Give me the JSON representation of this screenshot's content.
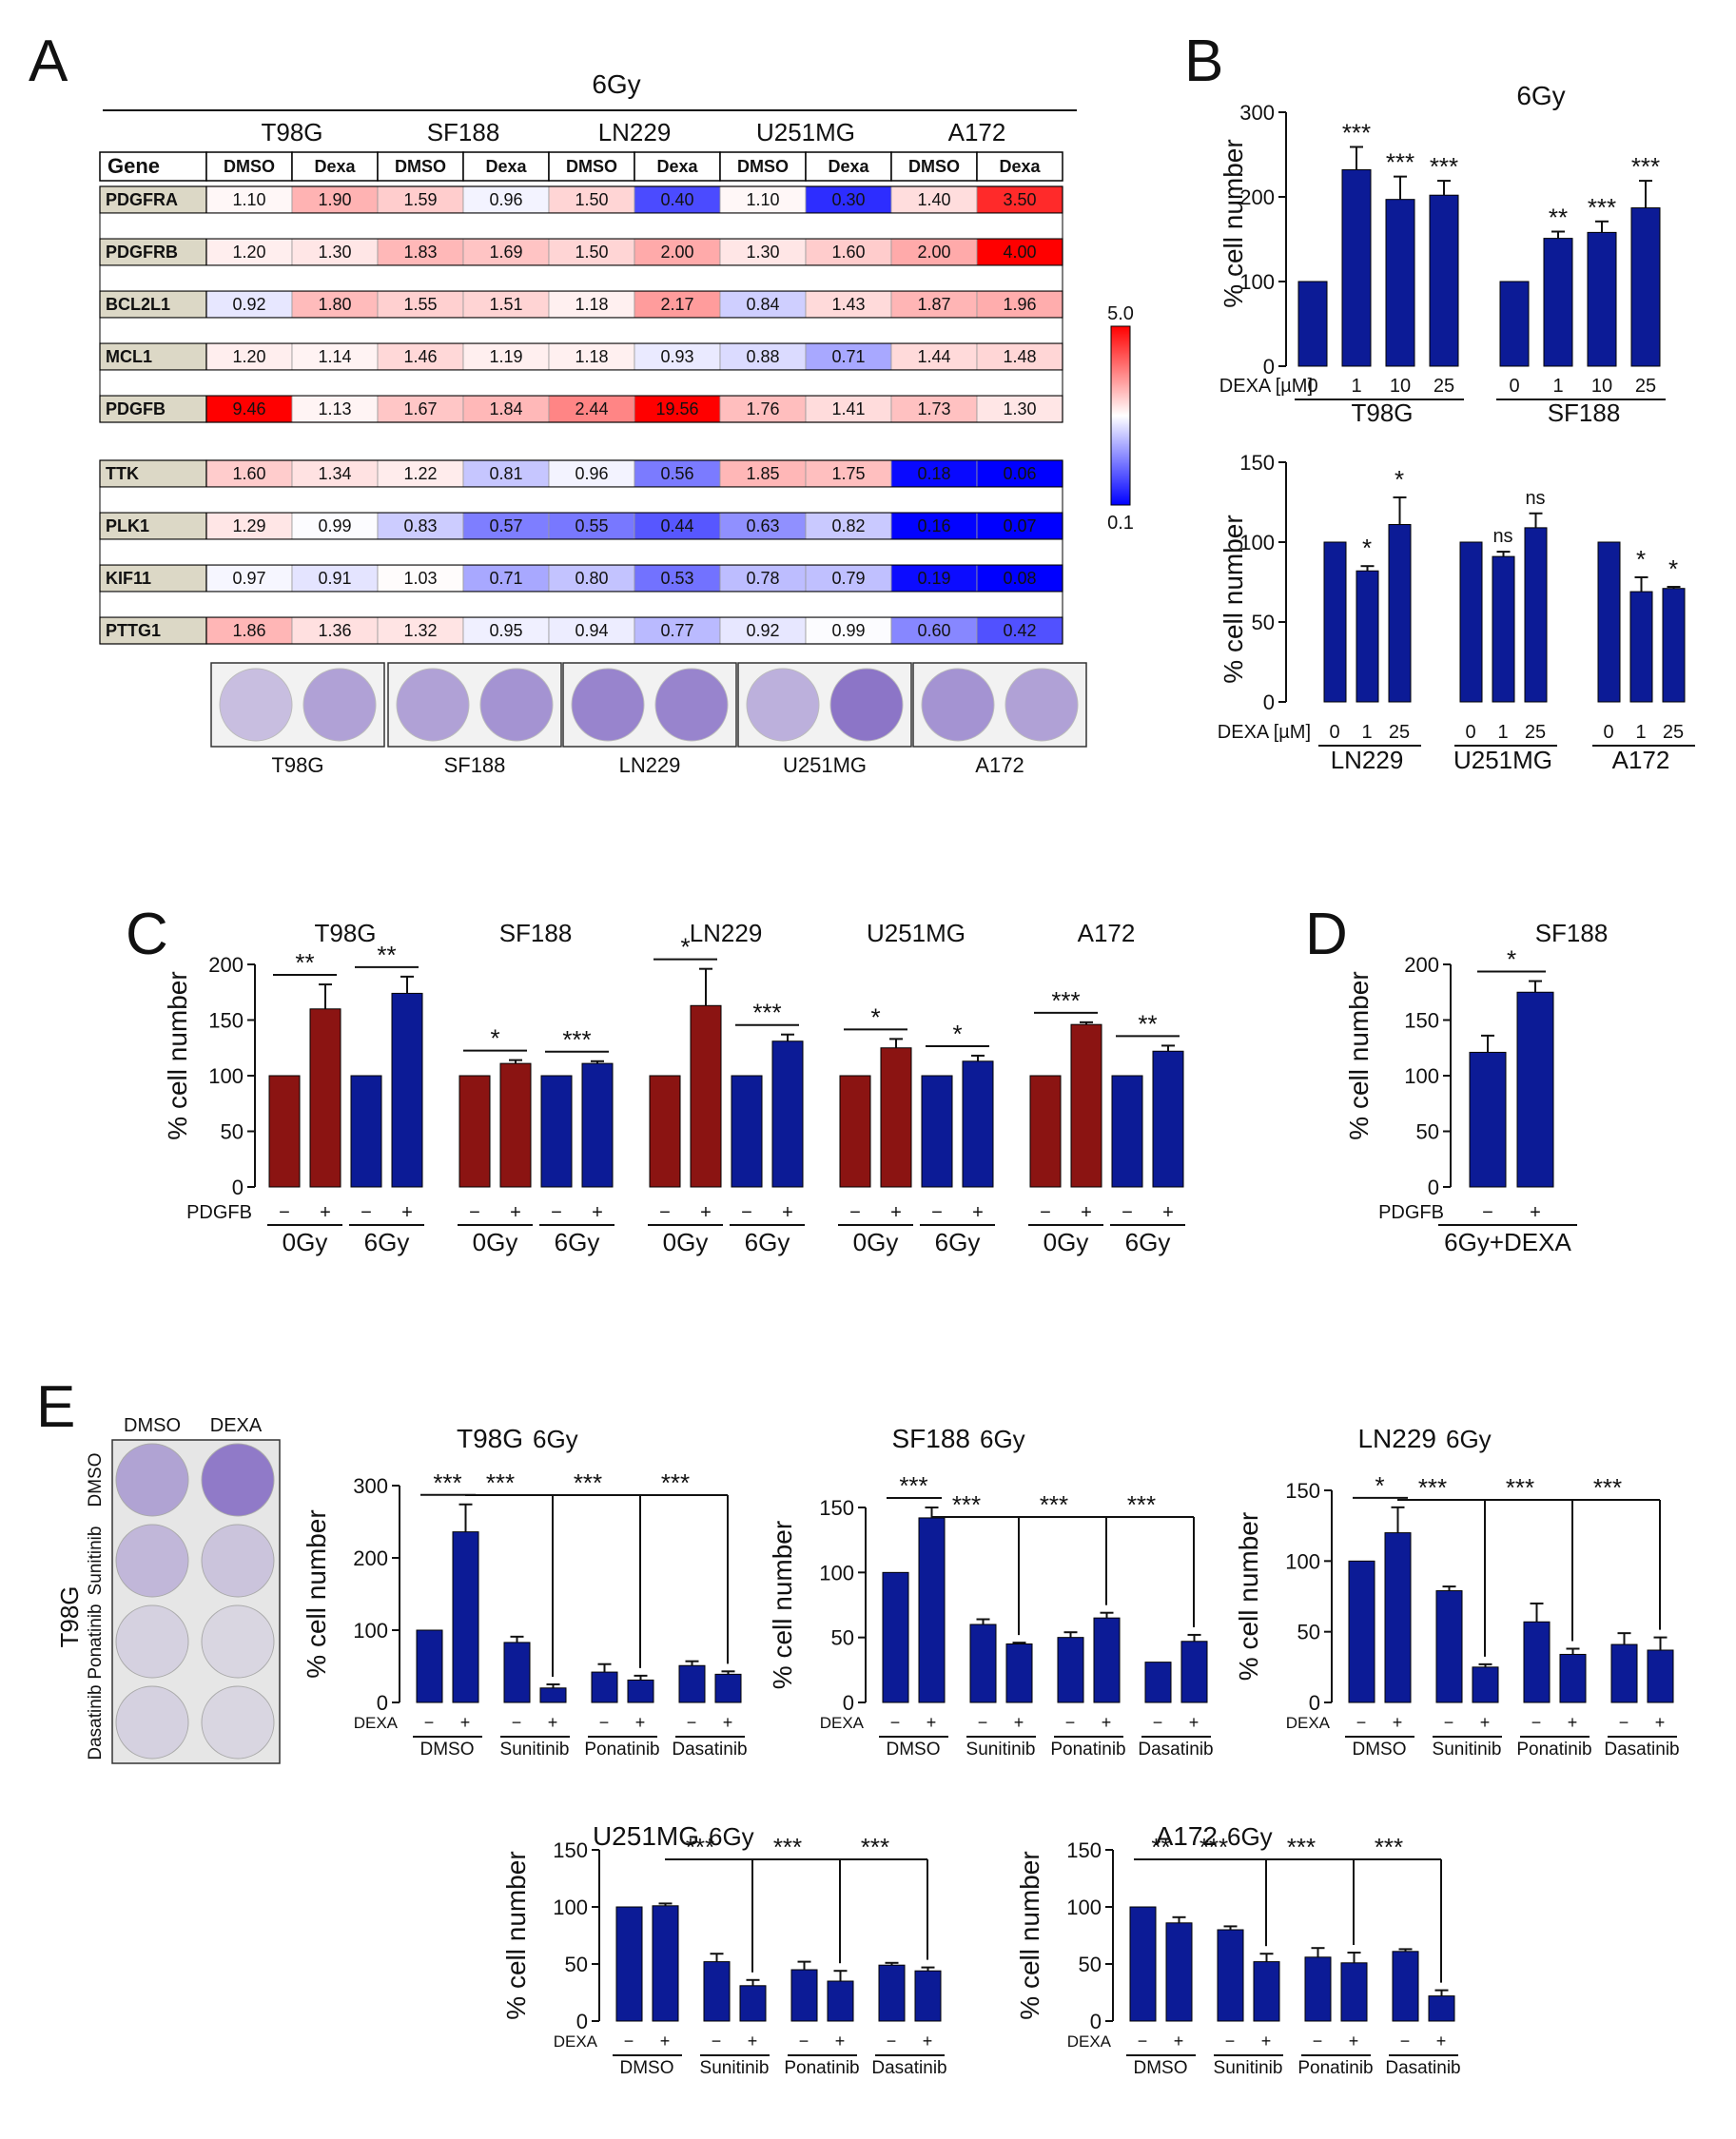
{
  "colors": {
    "blue": "#0c1b96",
    "red": "#8b1412",
    "axis": "#111111",
    "dish": "#7a5fc0",
    "grid": "#222222"
  },
  "panel_a": {
    "letter": "A",
    "title": "6Gy",
    "gene_header": "Gene",
    "cell_lines": [
      "T98G",
      "SF188",
      "LN229",
      "U251MG",
      "A172"
    ],
    "conditions": [
      "DMSO",
      "Dexa"
    ],
    "group1": [
      {
        "gene": "PDGFRA",
        "values": [
          "1.10",
          "1.90",
          "1.59",
          "0.96",
          "1.50",
          "0.40",
          "1.10",
          "0.30",
          "1.40",
          "3.50"
        ]
      },
      {
        "gene": "PDGFRB",
        "values": [
          "1.20",
          "1.30",
          "1.83",
          "1.69",
          "1.50",
          "2.00",
          "1.30",
          "1.60",
          "2.00",
          "4.00"
        ]
      },
      {
        "gene": "BCL2L1",
        "values": [
          "0.92",
          "1.80",
          "1.55",
          "1.51",
          "1.18",
          "2.17",
          "0.84",
          "1.43",
          "1.87",
          "1.96"
        ]
      },
      {
        "gene": "MCL1",
        "values": [
          "1.20",
          "1.14",
          "1.46",
          "1.19",
          "1.18",
          "0.93",
          "0.88",
          "0.71",
          "1.44",
          "1.48"
        ]
      },
      {
        "gene": "PDGFB",
        "values": [
          "9.46",
          "1.13",
          "1.67",
          "1.84",
          "2.44",
          "19.56",
          "1.76",
          "1.41",
          "1.73",
          "1.30"
        ]
      }
    ],
    "group2": [
      {
        "gene": "TTK",
        "values": [
          "1.60",
          "1.34",
          "1.22",
          "0.81",
          "0.96",
          "0.56",
          "1.85",
          "1.75",
          "0.18",
          "0.06"
        ]
      },
      {
        "gene": "PLK1",
        "values": [
          "1.29",
          "0.99",
          "0.83",
          "0.57",
          "0.55",
          "0.44",
          "0.63",
          "0.82",
          "0.16",
          "0.07"
        ]
      },
      {
        "gene": "KIF11",
        "values": [
          "0.97",
          "0.91",
          "1.03",
          "0.71",
          "0.80",
          "0.53",
          "0.78",
          "0.79",
          "0.19",
          "0.08"
        ]
      },
      {
        "gene": "PTTG1",
        "values": [
          "1.86",
          "1.36",
          "1.32",
          "0.95",
          "0.94",
          "0.77",
          "0.92",
          "0.99",
          "0.60",
          "0.42"
        ]
      }
    ],
    "colorbar": {
      "max_label": "5.0",
      "min_label": "0.1"
    },
    "dish_labels": [
      "T98G",
      "SF188",
      "LN229",
      "U251MG",
      "A172"
    ]
  },
  "panel_b": {
    "letter": "B",
    "title": "6Gy",
    "ylabel": "% cell number",
    "xprefix": "DEXA [µM]",
    "top": {
      "ymax": 300,
      "yticks": [
        "0",
        "100",
        "200",
        "300"
      ],
      "groups": [
        {
          "name": "T98G",
          "doses": [
            "0",
            "1",
            "10",
            "25"
          ],
          "values": [
            100,
            232,
            197,
            202
          ],
          "errors": [
            0,
            27,
            27,
            17
          ],
          "stars": [
            "",
            "***",
            "***",
            "***"
          ]
        },
        {
          "name": "SF188",
          "doses": [
            "0",
            "1",
            "10",
            "25"
          ],
          "values": [
            100,
            151,
            158,
            187
          ],
          "errors": [
            0,
            8,
            13,
            32
          ],
          "stars": [
            "",
            "**",
            "***",
            "***"
          ]
        }
      ]
    },
    "bottom": {
      "ymax": 150,
      "yticks": [
        "0",
        "50",
        "100",
        "150"
      ],
      "groups": [
        {
          "name": "LN229",
          "doses": [
            "0",
            "1",
            "25"
          ],
          "values": [
            100,
            82,
            111
          ],
          "errors": [
            0,
            3,
            17
          ],
          "stars": [
            "",
            "*",
            "*"
          ]
        },
        {
          "name": "U251MG",
          "doses": [
            "0",
            "1",
            "25"
          ],
          "values": [
            100,
            91,
            109
          ],
          "errors": [
            0,
            3,
            9
          ],
          "stars": [
            "",
            "ns",
            "ns"
          ]
        },
        {
          "name": "A172",
          "doses": [
            "0",
            "1",
            "25"
          ],
          "values": [
            100,
            69,
            71
          ],
          "errors": [
            0,
            9,
            1
          ],
          "stars": [
            "",
            "*",
            "*"
          ]
        }
      ]
    }
  },
  "panel_c": {
    "letter": "C",
    "ylabel": "% cell number",
    "treat_label": "PDGFB",
    "ymax": 200,
    "yticks": [
      "0",
      "50",
      "100",
      "150",
      "200"
    ],
    "signs": [
      "−",
      "+"
    ],
    "doses": [
      "0Gy",
      "6Gy"
    ],
    "groups": [
      {
        "name": "T98G",
        "values": [
          100,
          160,
          100,
          174
        ],
        "errors": [
          0,
          22,
          0,
          15
        ],
        "stars": [
          "**",
          "**"
        ]
      },
      {
        "name": "SF188",
        "values": [
          100,
          111,
          100,
          111
        ],
        "errors": [
          0,
          3,
          0,
          2
        ],
        "stars": [
          "*",
          "***"
        ]
      },
      {
        "name": "LN229",
        "values": [
          100,
          163,
          100,
          131
        ],
        "errors": [
          0,
          33,
          0,
          6
        ],
        "stars": [
          "*",
          "***"
        ]
      },
      {
        "name": "U251MG",
        "values": [
          100,
          125,
          100,
          113
        ],
        "errors": [
          0,
          8,
          0,
          5
        ],
        "stars": [
          "*",
          "*"
        ]
      },
      {
        "name": "A172",
        "values": [
          100,
          146,
          100,
          122
        ],
        "errors": [
          0,
          2,
          0,
          5
        ],
        "stars": [
          "***",
          "**"
        ]
      }
    ]
  },
  "panel_d": {
    "letter": "D",
    "title": "SF188",
    "ylabel": "% cell number",
    "treat_label": "PDGFB",
    "ymax": 200,
    "yticks": [
      "0",
      "50",
      "100",
      "150",
      "200"
    ],
    "signs": [
      "−",
      "+"
    ],
    "values": [
      121,
      175
    ],
    "errors": [
      15,
      10
    ],
    "star": "*",
    "group_label": "6Gy+DEXA"
  },
  "panel_e": {
    "letter": "E",
    "dish_cols": [
      "DMSO",
      "DEXA"
    ],
    "dish_rows": [
      "DMSO",
      "Sunitinib",
      "Ponatinib",
      "Dasatinib"
    ],
    "dish_cell_line": "T98G",
    "ylabel": "% cell number",
    "treat_label": "DEXA",
    "signs": [
      "−",
      "+"
    ],
    "inhibitors": [
      "DMSO",
      "Sunitinib",
      "Ponatinib",
      "Dasatinib"
    ],
    "charts": [
      {
        "title": "T98G",
        "dose": "6Gy",
        "ymax": 300,
        "yticks": [
          "0",
          "100",
          "200",
          "300"
        ],
        "values": [
          100,
          236,
          83,
          20,
          42,
          31,
          51,
          39
        ],
        "errors": [
          0,
          38,
          8,
          5,
          11,
          6,
          6,
          4
        ],
        "stars": [
          "***",
          "***",
          "***",
          "***"
        ]
      },
      {
        "title": "SF188",
        "dose": "6Gy",
        "ymax": 150,
        "yticks": [
          "0",
          "50",
          "100",
          "150"
        ],
        "values": [
          100,
          142,
          60,
          45,
          50,
          65,
          31,
          47
        ],
        "errors": [
          0,
          8,
          4,
          1,
          4,
          4,
          0,
          5
        ],
        "stars": [
          "***",
          "***",
          "***",
          "***"
        ]
      },
      {
        "title": "LN229",
        "dose": "6Gy",
        "ymax": 150,
        "yticks": [
          "0",
          "50",
          "100",
          "150"
        ],
        "values": [
          100,
          120,
          79,
          25,
          57,
          34,
          41,
          37
        ],
        "errors": [
          0,
          18,
          3,
          2,
          13,
          4,
          8,
          9
        ],
        "stars": [
          "*",
          "***",
          "***",
          "***"
        ]
      },
      {
        "title": "U251MG",
        "dose": "6Gy",
        "ymax": 150,
        "yticks": [
          "0",
          "50",
          "100",
          "150"
        ],
        "values": [
          100,
          101,
          52,
          31,
          45,
          35,
          49,
          44
        ],
        "errors": [
          0,
          2,
          7,
          5,
          7,
          9,
          2,
          3
        ],
        "stars": [
          "",
          "***",
          "***",
          "***"
        ]
      },
      {
        "title": "A172",
        "dose": "6Gy",
        "ymax": 150,
        "yticks": [
          "0",
          "50",
          "100",
          "150"
        ],
        "values": [
          100,
          86,
          80,
          52,
          56,
          51,
          61,
          22
        ],
        "errors": [
          0,
          5,
          3,
          7,
          8,
          9,
          2,
          5
        ],
        "stars": [
          "**",
          "***",
          "***",
          "***"
        ]
      }
    ]
  }
}
